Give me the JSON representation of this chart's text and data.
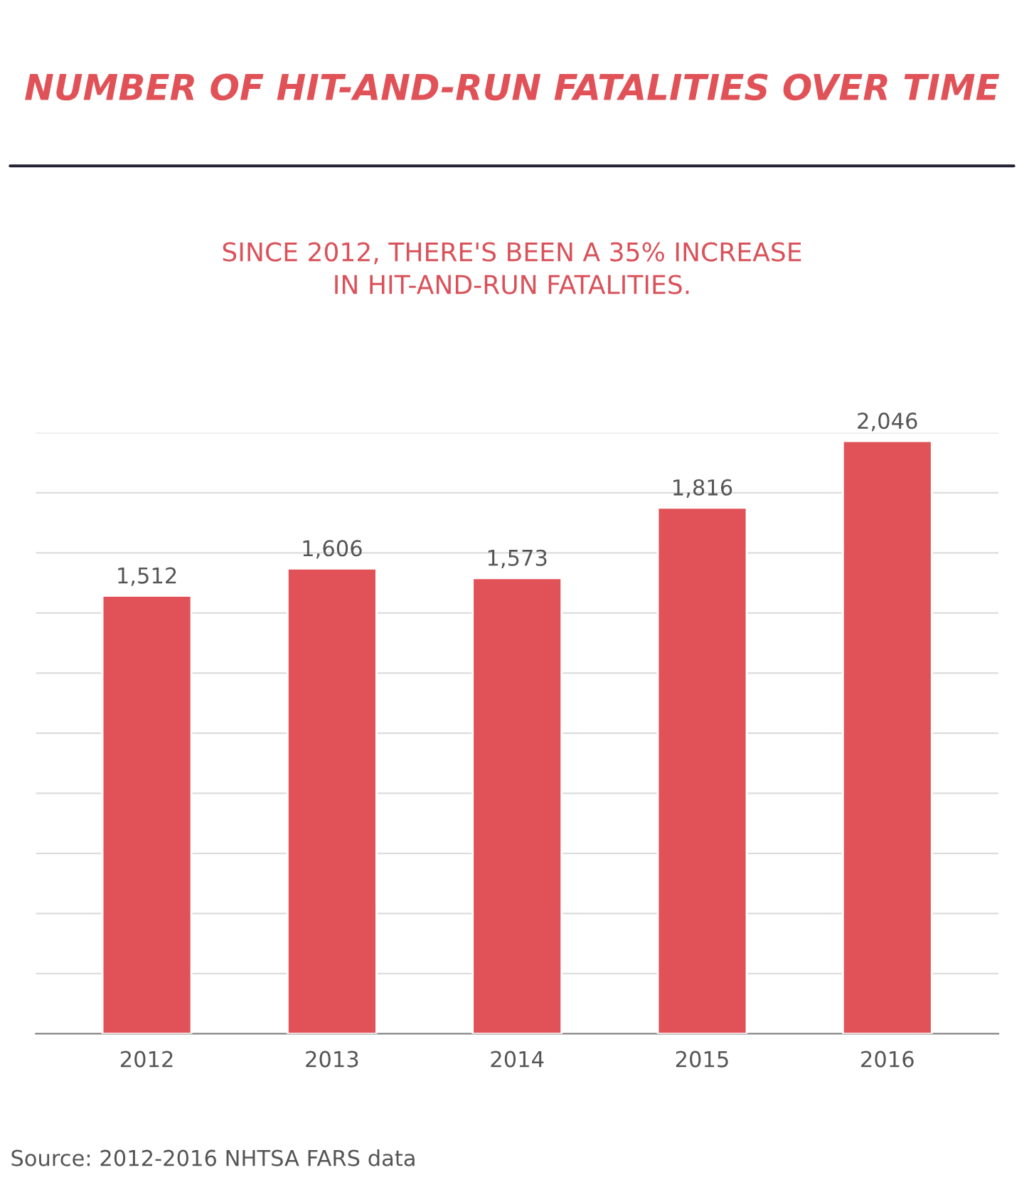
{
  "chart_data": {
    "type": "bar",
    "title": "NUMBER OF HIT-AND-RUN FATALITIES OVER TIME",
    "subtitle": "SINCE 2012, THERE'S BEEN A 35% INCREASE\nIN HIT-AND-RUN FATALITIES.",
    "categories": [
      "2012",
      "2013",
      "2014",
      "2015",
      "2016"
    ],
    "values": [
      1512,
      1606,
      1573,
      1816,
      2046
    ],
    "value_labels": [
      "1,512",
      "1,606",
      "1,573",
      "1,816",
      "2,046"
    ],
    "color": "#e05257",
    "ylim": [
      0,
      2075
    ],
    "yticks": [
      {
        "value": 0,
        "label": null
      },
      {
        "value": 207.5,
        "label": null
      },
      {
        "value": 415,
        "label": null
      },
      {
        "value": 622.5,
        "label": null
      },
      {
        "value": 830,
        "label": null
      },
      {
        "value": 1037.5,
        "label": null
      },
      {
        "value": 1245,
        "label": null
      },
      {
        "value": 1452.5,
        "label": null
      },
      {
        "value": 1660,
        "label": null
      },
      {
        "value": 1867.5,
        "label": null
      },
      {
        "value": 2075,
        "label": null
      }
    ],
    "tick_labels": "x",
    "grid": "y",
    "annotations": [
      "Source: 2012-2016 NHTSA FARS data"
    ]
  }
}
